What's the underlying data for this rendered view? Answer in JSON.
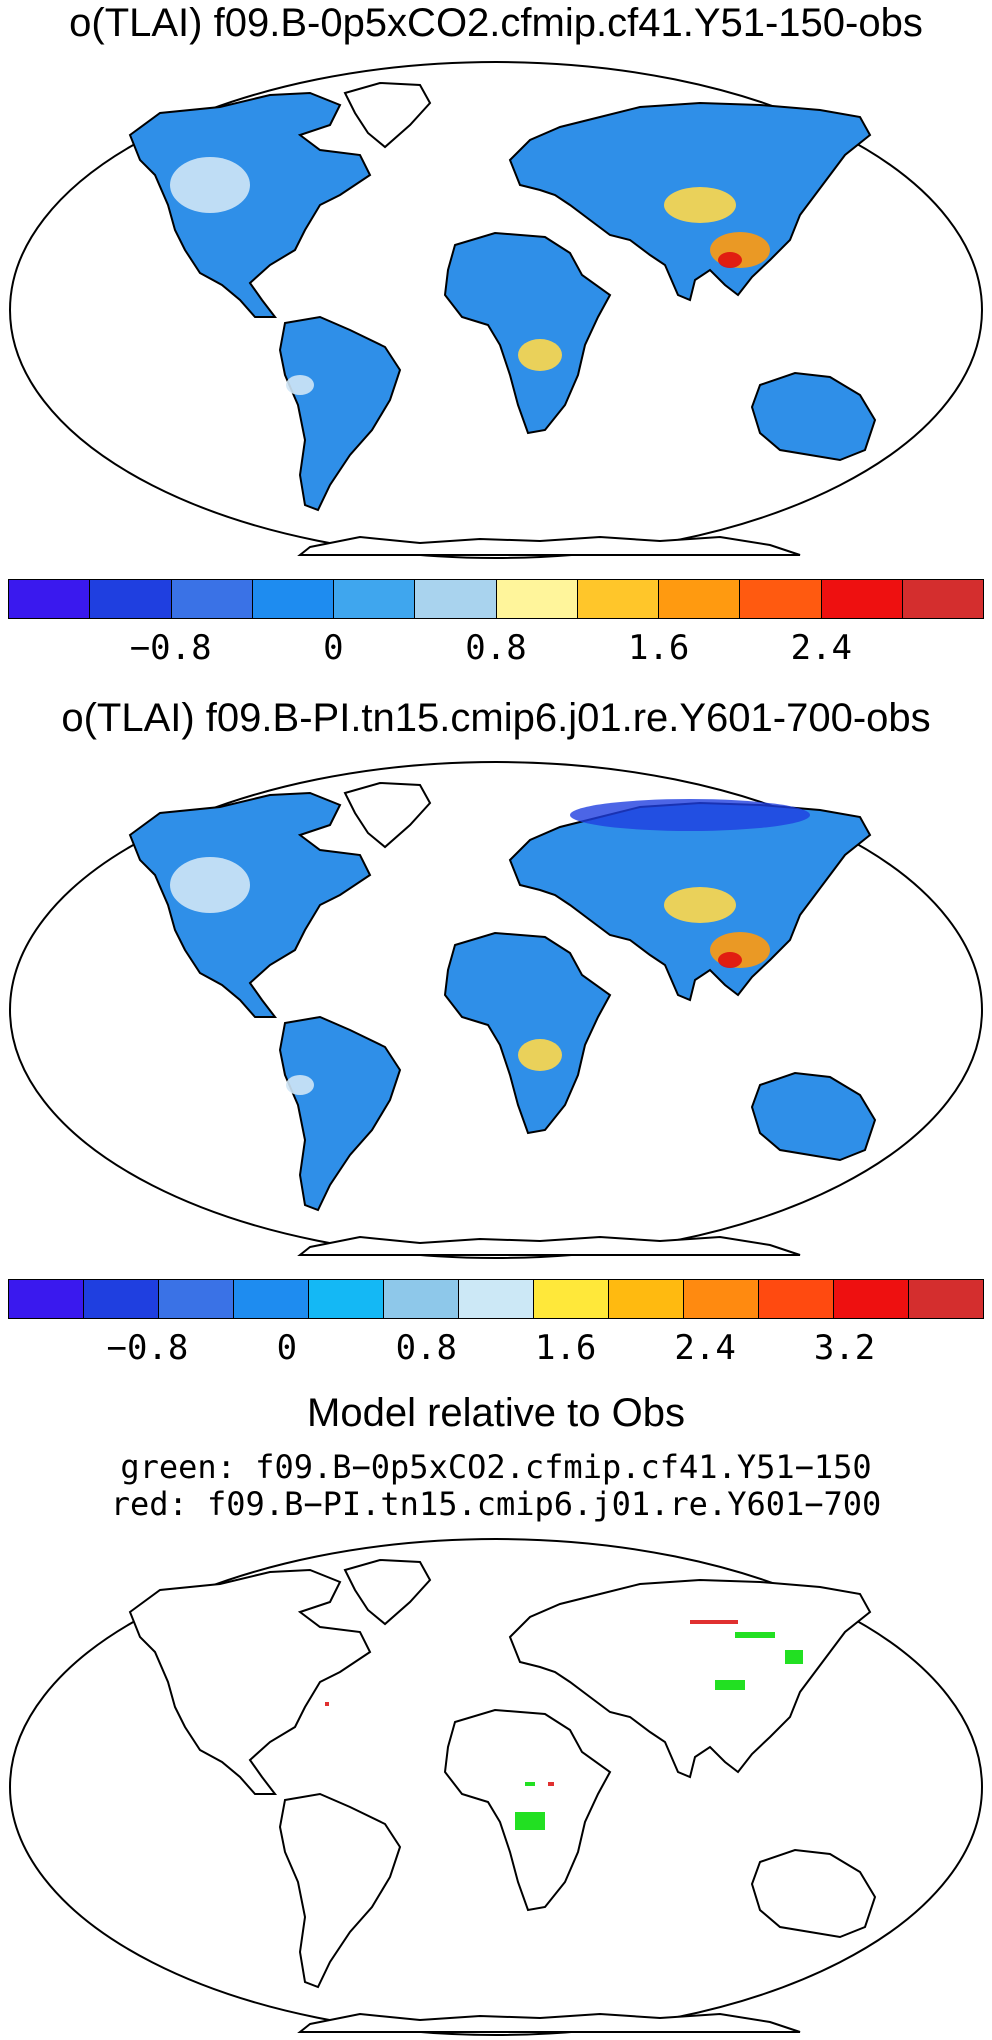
{
  "panels": [
    {
      "title": "o(TLAI) f09.B-0p5xCO2.cfmip.cf41.Y51-150-obs",
      "colorbar": {
        "colors": [
          "#3a19ee",
          "#1f3fe0",
          "#3a72e6",
          "#1e8cf0",
          "#3fa6ee",
          "#a9d3ee",
          "#fff59b",
          "#ffc62a",
          "#ff9a10",
          "#ff5a10",
          "#ee1010",
          "#d42e2e"
        ],
        "tick_labels": [
          "−0.8",
          "0",
          "0.8",
          "1.6",
          "2.4"
        ],
        "tick_values": [
          -0.8,
          0,
          0.8,
          1.6,
          2.4
        ],
        "range": [
          -1.6,
          3.2
        ]
      },
      "hotspots": "Tibetan Plateau, northern China, Mongolia, central/southern Africa, Andes"
    },
    {
      "title": "o(TLAI) f09.B-PI.tn15.cmip6.j01.re.Y601-700-obs",
      "colorbar": {
        "colors": [
          "#3a19ee",
          "#1f3fe0",
          "#3a72e6",
          "#1e8cf0",
          "#14b8f5",
          "#8ec8ea",
          "#cce8f6",
          "#ffe83a",
          "#ffba10",
          "#ff8a10",
          "#ff4a10",
          "#ee1010",
          "#d42e2e"
        ],
        "tick_labels": [
          "−0.8",
          "0",
          "0.8",
          "1.6",
          "2.4",
          "3.2"
        ],
        "tick_values": [
          -0.8,
          0,
          0.8,
          1.6,
          2.4,
          3.2
        ],
        "range": [
          -1.6,
          4.0
        ]
      }
    }
  ],
  "comparison": {
    "title": "Model relative to Obs",
    "green_line": "green: f09.B−0p5xCO2.cfmip.cf41.Y51−150",
    "red_line": "red: f09.B−PI.tn15.cmip6.j01.re.Y601−700",
    "green_color": "#22e022",
    "red_color": "#e03030"
  },
  "colors": {
    "land_base": "#2f8fe8",
    "coastline": "#000000"
  }
}
